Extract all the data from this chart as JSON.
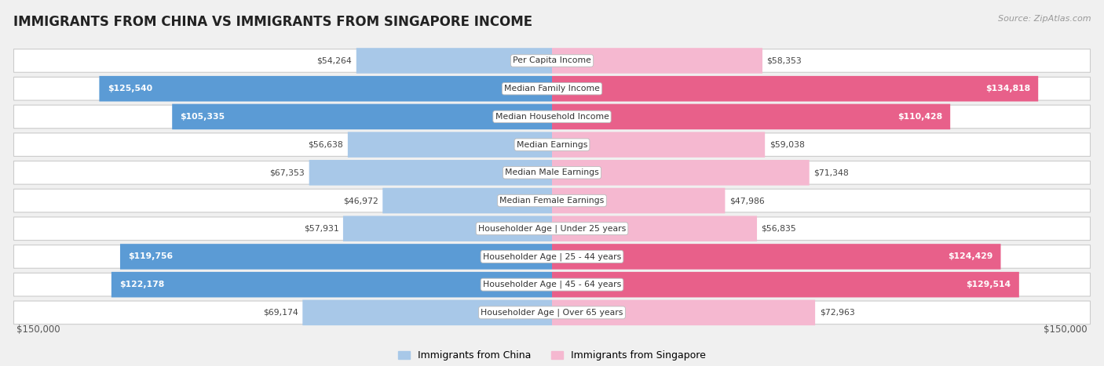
{
  "title": "IMMIGRANTS FROM CHINA VS IMMIGRANTS FROM SINGAPORE INCOME",
  "source": "Source: ZipAtlas.com",
  "categories": [
    "Per Capita Income",
    "Median Family Income",
    "Median Household Income",
    "Median Earnings",
    "Median Male Earnings",
    "Median Female Earnings",
    "Householder Age | Under 25 years",
    "Householder Age | 25 - 44 years",
    "Householder Age | 45 - 64 years",
    "Householder Age | Over 65 years"
  ],
  "china_values": [
    54264,
    125540,
    105335,
    56638,
    67353,
    46972,
    57931,
    119756,
    122178,
    69174
  ],
  "singapore_values": [
    58353,
    134818,
    110428,
    59038,
    71348,
    47986,
    56835,
    124429,
    129514,
    72963
  ],
  "china_color_low": "#a8c8e8",
  "china_color_high": "#5b9bd5",
  "singapore_color_low": "#f5b8d0",
  "singapore_color_high": "#e8608a",
  "threshold": 100000,
  "x_max": 150000,
  "x_label_left": "$150,000",
  "x_label_right": "$150,000",
  "legend_china": "Immigrants from China",
  "legend_singapore": "Immigrants from Singapore",
  "background_color": "#f0f0f0",
  "row_color": "#ffffff"
}
